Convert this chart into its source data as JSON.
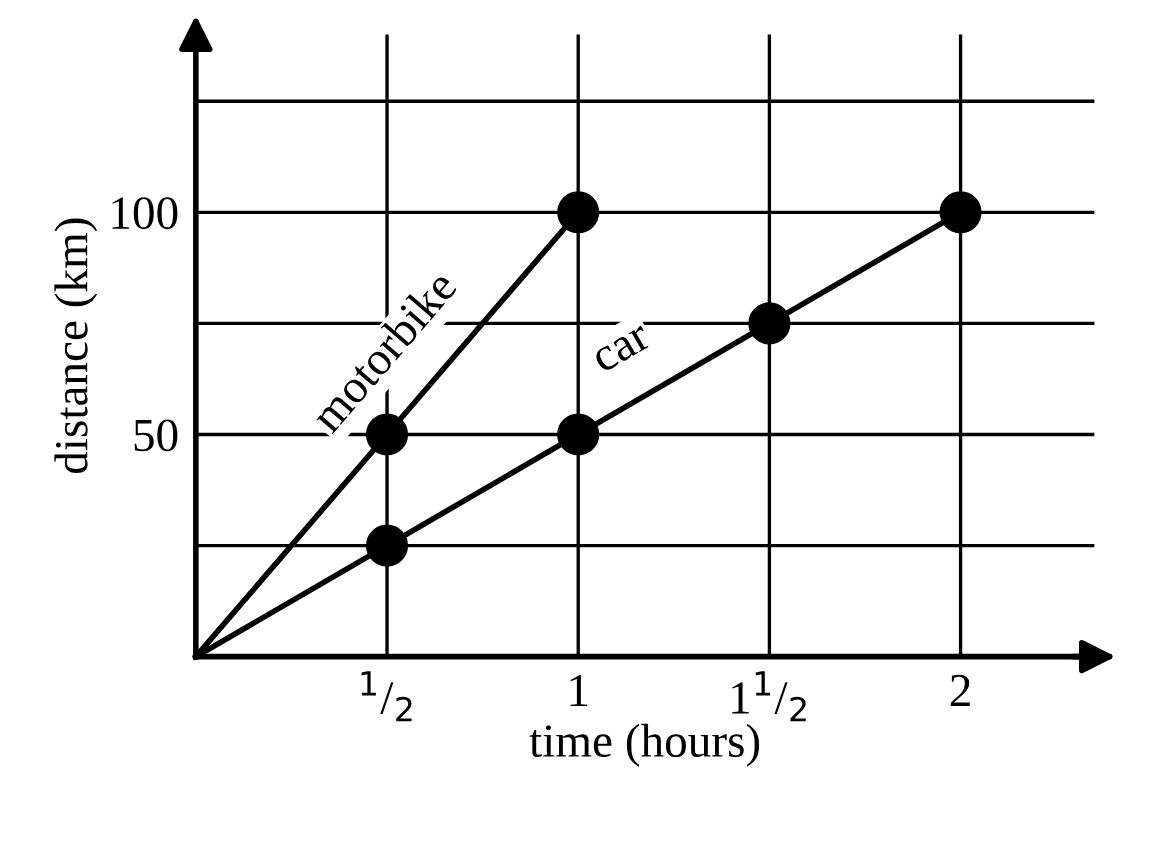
{
  "chart_data": {
    "type": "line",
    "xlabel": "time (hours)",
    "ylabel": "distance (km)",
    "series": [
      {
        "name": "motorbike",
        "color": "#000000",
        "x": [
          0,
          0.5,
          1
        ],
        "values": [
          0,
          50,
          100
        ]
      },
      {
        "name": "car",
        "color": "#000000",
        "x": [
          0,
          0.5,
          1,
          1.5,
          2
        ],
        "values": [
          0,
          25,
          50,
          75,
          100
        ]
      },
      {
        "type": "scatter",
        "marker": "circle",
        "color": "#000000",
        "x": [
          0.5,
          1,
          0.5,
          1,
          1.5,
          2
        ],
        "values": [
          50,
          100,
          25,
          50,
          75,
          100
        ]
      }
    ],
    "xlim": [
      0,
      2.35
    ],
    "ylim": [
      0,
      140
    ],
    "xticks": [
      {
        "value": 0.5,
        "label": "$^{1}$/$_{2}$"
      },
      1,
      {
        "value": 1.5,
        "label": "1$^{1}$/$_{2}$"
      },
      2
    ],
    "yticks": [
      {
        "value": 25,
        "label": null
      },
      50,
      {
        "value": 75,
        "label": null
      },
      100,
      {
        "value": 125,
        "label": null
      }
    ],
    "grid": true,
    "marker": "none",
    "line_style": "solid"
  }
}
